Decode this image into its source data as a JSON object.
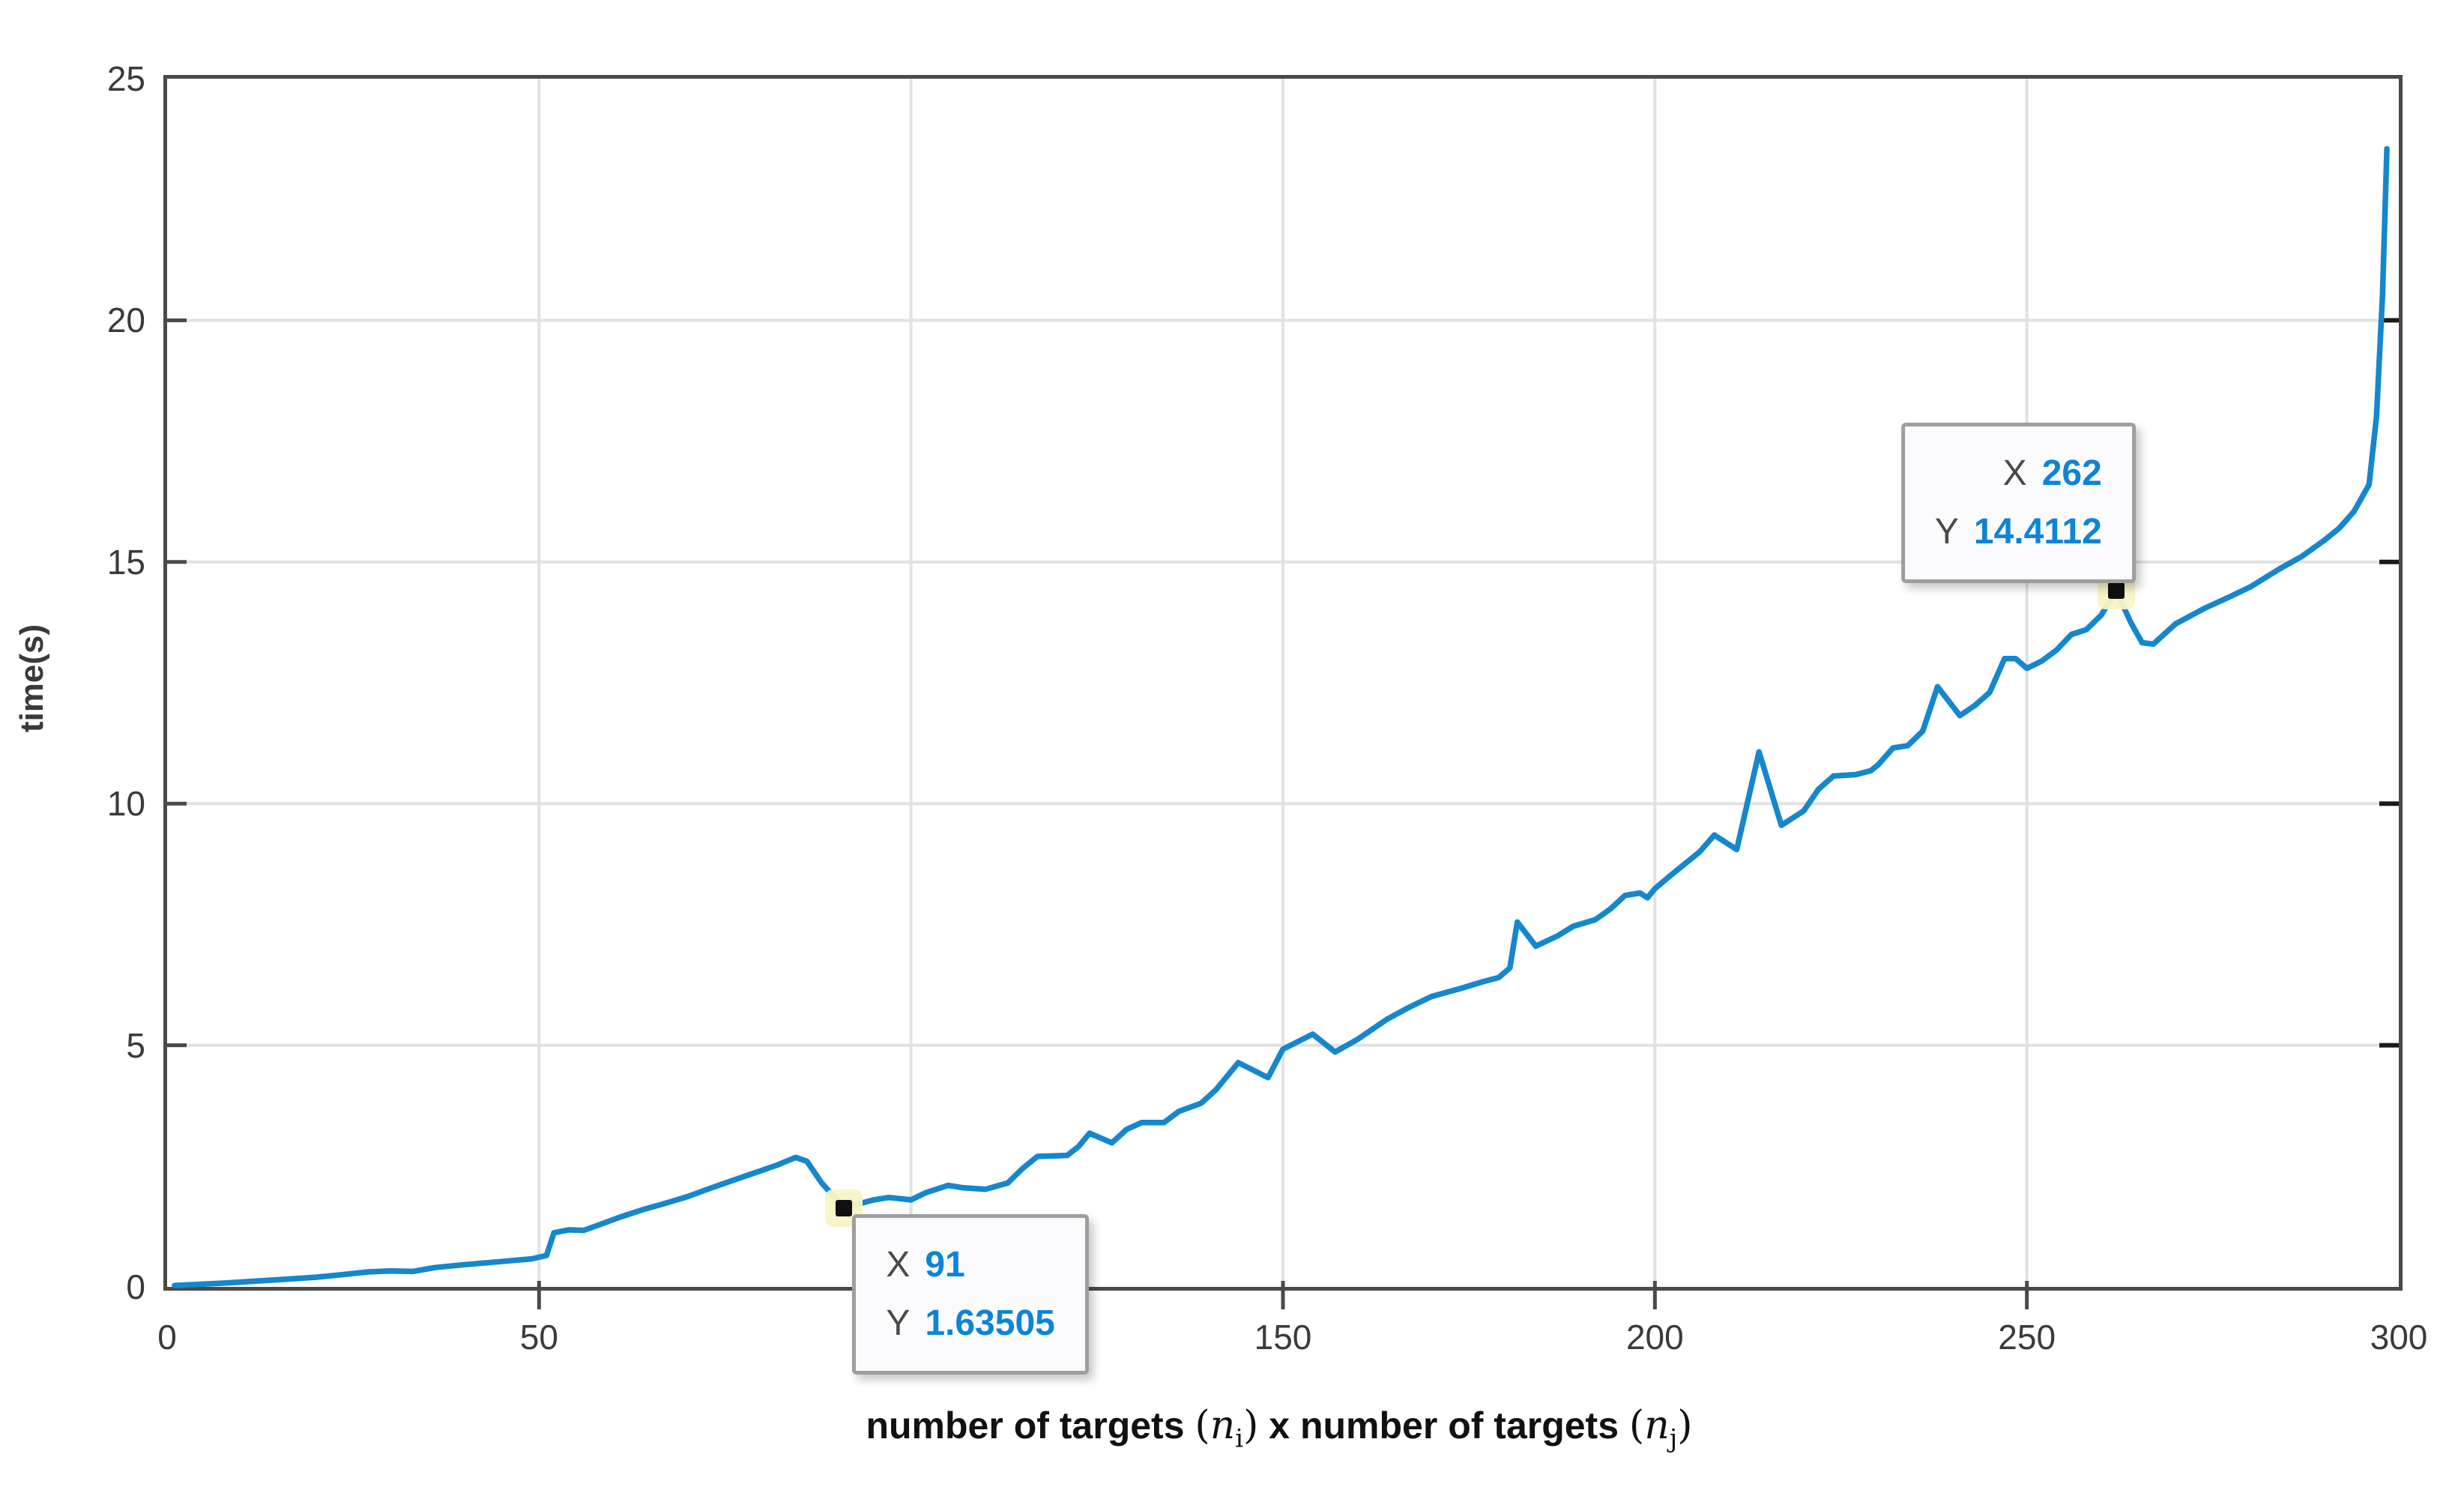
{
  "figure": {
    "background": "#ffffff",
    "axis_color": "#4a4a4a",
    "grid_color": "#e2e2e2",
    "tick_label_color": "#3a3a3a"
  },
  "chart_data": {
    "type": "line",
    "title": "",
    "ylabel": "time(s)",
    "xlabel": {
      "prefix": "number of targets ",
      "math1_open": "(",
      "math1_var": "n",
      "math1_sub": "i",
      "math1_close": ")",
      "middle": " x number of targets ",
      "math2_open": "(",
      "math2_var": "n",
      "math2_sub": "j",
      "math2_close": ")"
    },
    "xlim": [
      0,
      300
    ],
    "ylim": [
      0,
      25
    ],
    "xticks": [
      0,
      50,
      100,
      150,
      200,
      250,
      300
    ],
    "yticks": [
      0,
      5,
      10,
      15,
      20,
      25
    ],
    "grid": true,
    "legend": "none",
    "line_color": "#1487cd",
    "series": [
      {
        "name": "time",
        "x": [
          1,
          4,
          8,
          12,
          16,
          20,
          24,
          27,
          30,
          33,
          36,
          40,
          43,
          46,
          49,
          51,
          52,
          54,
          56,
          58,
          61,
          64,
          67,
          70,
          73,
          76,
          79,
          82,
          84.5,
          86,
          88,
          91,
          93,
          95,
          97,
          100,
          102,
          105,
          107,
          110,
          113,
          115,
          117,
          121,
          122.5,
          124,
          127,
          129,
          131,
          134,
          136,
          139,
          141,
          144,
          148,
          150,
          154,
          157,
          160,
          164,
          167,
          170,
          174,
          177,
          179,
          180.5,
          181.5,
          184,
          187,
          189,
          192,
          194,
          196,
          198,
          199,
          200,
          202,
          204,
          206,
          208,
          209.5,
          211,
          214,
          217,
          220,
          222,
          224,
          227,
          229,
          230,
          232,
          234,
          236,
          238,
          241,
          243,
          245,
          247,
          248.5,
          250,
          252,
          254,
          256,
          258,
          260,
          262,
          264,
          265.5,
          267,
          270,
          274,
          277,
          280,
          284,
          287,
          290,
          292,
          294,
          296,
          297,
          297.8,
          298.4
        ],
        "y": [
          0.03,
          0.05,
          0.08,
          0.12,
          0.16,
          0.2,
          0.26,
          0.31,
          0.33,
          0.32,
          0.4,
          0.46,
          0.5,
          0.54,
          0.58,
          0.65,
          1.12,
          1.18,
          1.17,
          1.28,
          1.45,
          1.6,
          1.73,
          1.87,
          2.04,
          2.2,
          2.36,
          2.52,
          2.68,
          2.6,
          2.15,
          1.63505,
          1.72,
          1.8,
          1.85,
          1.8,
          1.95,
          2.1,
          2.05,
          2.02,
          2.15,
          2.45,
          2.7,
          2.72,
          2.9,
          3.18,
          2.98,
          3.26,
          3.4,
          3.4,
          3.63,
          3.8,
          4.08,
          4.64,
          4.33,
          4.92,
          5.23,
          4.86,
          5.12,
          5.54,
          5.79,
          6.01,
          6.18,
          6.32,
          6.4,
          6.6,
          7.55,
          7.05,
          7.27,
          7.46,
          7.6,
          7.82,
          8.1,
          8.15,
          8.05,
          8.24,
          8.5,
          8.75,
          9.0,
          9.35,
          9.2,
          9.05,
          11.07,
          9.55,
          9.85,
          10.3,
          10.57,
          10.6,
          10.68,
          10.8,
          11.15,
          11.2,
          11.5,
          12.42,
          11.82,
          12.03,
          12.3,
          13.0,
          13.0,
          12.8,
          12.95,
          13.18,
          13.5,
          13.6,
          13.9,
          14.4112,
          13.74,
          13.33,
          13.3,
          13.72,
          14.05,
          14.26,
          14.48,
          14.86,
          15.12,
          15.45,
          15.7,
          16.05,
          16.6,
          18.0,
          20.5,
          23.55
        ]
      }
    ],
    "datatips": [
      {
        "point_x": 91,
        "point_y": 1.63505,
        "label_x": "X",
        "label_y": "Y",
        "value_x": "91",
        "value_y": "1.63505"
      },
      {
        "point_x": 262,
        "point_y": 14.4112,
        "label_x": "X",
        "label_y": "Y",
        "value_x": "262",
        "value_y": "14.4112"
      }
    ]
  }
}
